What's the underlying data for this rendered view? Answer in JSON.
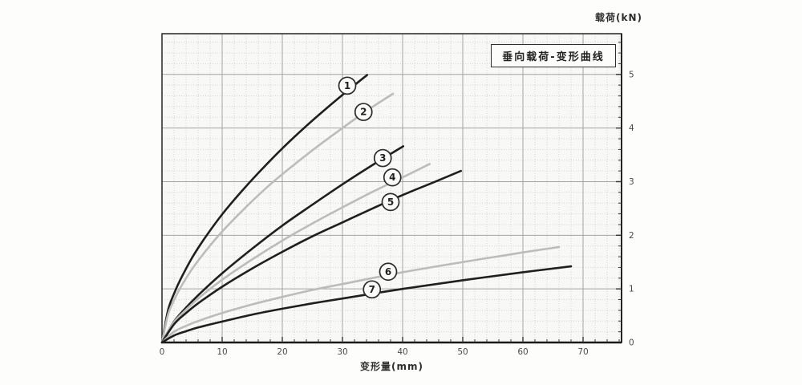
{
  "chart_data": {
    "type": "line",
    "title": "垂向载荷-变形曲线",
    "xlabel": "变形量(mm)",
    "ylabel": "载荷(kN)",
    "x_ticks": [
      0,
      10,
      20,
      30,
      40,
      50,
      60,
      70
    ],
    "y_ticks": [
      0,
      1,
      2,
      3,
      4,
      5
    ],
    "xlim": [
      0,
      76.4
    ],
    "ylim": [
      0,
      5.76
    ],
    "minor_step_x": 2,
    "minor_step_y": 0.2,
    "grid": "graph-paper: solid major lines, dotted minor lines",
    "y_axis_side": "right",
    "colors": {
      "dark": "#1f1f1f",
      "light": "#bcbcbc",
      "grid_major": "#a3a3a1",
      "grid_minor": "#d4d4d2",
      "border": "#333333",
      "plot_bg": "#f8f8f6",
      "text": "#4a4a4a",
      "label_circle_fill": "#fbfbfa",
      "label_circle_stroke": "#2c2c2c"
    },
    "series": [
      {
        "name": "1",
        "tone": "dark",
        "x": [
          0,
          1,
          2,
          3,
          5,
          7,
          10,
          13,
          16,
          20,
          24,
          28,
          31,
          34.1
        ],
        "y": [
          0,
          0.6,
          0.91,
          1.16,
          1.58,
          1.93,
          2.39,
          2.79,
          3.16,
          3.62,
          4.04,
          4.43,
          4.71,
          4.99
        ],
        "label": {
          "x": 30.8,
          "y": 4.79
        }
      },
      {
        "name": "2",
        "tone": "light",
        "x": [
          0,
          1,
          2,
          3,
          5,
          7,
          10,
          14,
          18,
          22,
          26,
          30,
          34,
          38.4
        ],
        "y": [
          0,
          0.52,
          0.79,
          1.01,
          1.37,
          1.67,
          2.07,
          2.53,
          2.95,
          3.32,
          3.67,
          4.0,
          4.32,
          4.64
        ],
        "label": {
          "x": 33.5,
          "y": 4.3
        }
      },
      {
        "name": "3",
        "tone": "dark",
        "x": [
          0,
          2,
          4,
          6,
          10,
          15,
          20,
          25,
          30,
          35,
          40.1
        ],
        "y": [
          0,
          0.39,
          0.65,
          0.88,
          1.29,
          1.75,
          2.18,
          2.57,
          2.95,
          3.31,
          3.66
        ],
        "label": {
          "x": 36.7,
          "y": 3.44
        }
      },
      {
        "name": "4",
        "tone": "light",
        "x": [
          0,
          2,
          4,
          6,
          10,
          15,
          20,
          25,
          30,
          35,
          40,
          44.5
        ],
        "y": [
          0,
          0.38,
          0.61,
          0.82,
          1.17,
          1.55,
          1.9,
          2.22,
          2.52,
          2.81,
          3.08,
          3.33
        ],
        "label": {
          "x": 38.3,
          "y": 3.08
        }
      },
      {
        "name": "5",
        "tone": "dark",
        "x": [
          0,
          2,
          4,
          6,
          10,
          15,
          20,
          25,
          30,
          35,
          40,
          45,
          49.7
        ],
        "y": [
          0,
          0.34,
          0.55,
          0.73,
          1.04,
          1.38,
          1.69,
          1.98,
          2.24,
          2.5,
          2.75,
          2.98,
          3.2
        ],
        "label": {
          "x": 38.0,
          "y": 2.62
        }
      },
      {
        "name": "6",
        "tone": "light",
        "x": [
          0,
          2,
          4,
          6,
          10,
          15,
          20,
          25,
          30,
          40,
          50,
          60,
          66
        ],
        "y": [
          0,
          0.2,
          0.31,
          0.4,
          0.55,
          0.71,
          0.85,
          0.98,
          1.09,
          1.31,
          1.5,
          1.68,
          1.78
        ],
        "label": {
          "x": 37.6,
          "y": 1.32
        }
      },
      {
        "name": "7",
        "tone": "dark",
        "x": [
          0,
          2,
          4,
          6,
          10,
          15,
          20,
          25,
          30,
          40,
          50,
          60,
          68
        ],
        "y": [
          0,
          0.13,
          0.21,
          0.28,
          0.39,
          0.52,
          0.63,
          0.73,
          0.82,
          1.0,
          1.16,
          1.31,
          1.42
        ],
        "label": {
          "x": 34.9,
          "y": 0.99
        }
      }
    ]
  }
}
